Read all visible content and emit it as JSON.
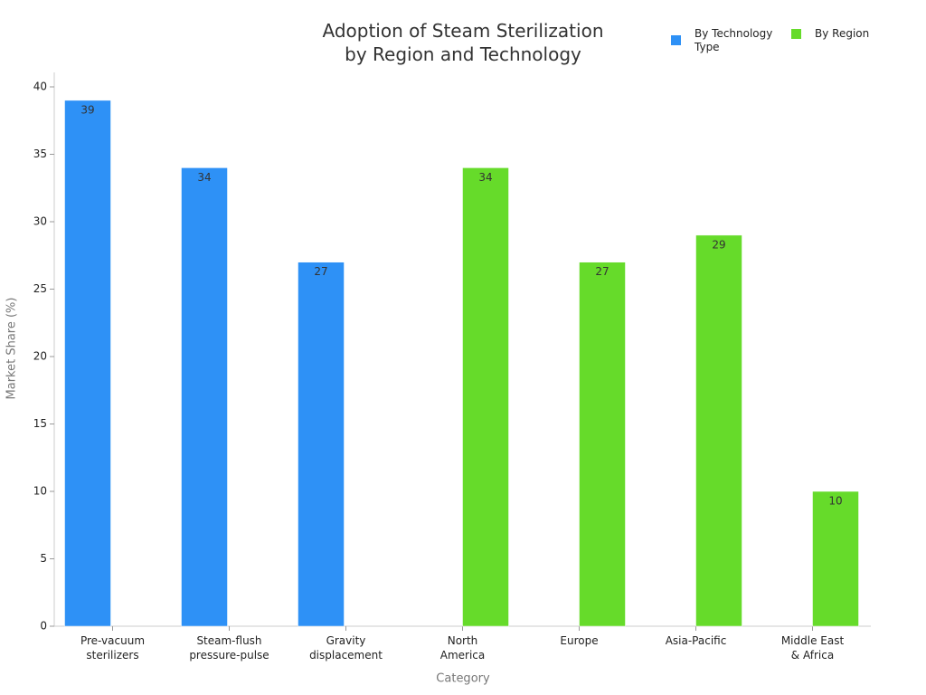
{
  "chart_data": {
    "type": "bar",
    "title": "Adoption of Steam Sterilization\nby Region and Technology",
    "x_label": "Category",
    "y_label": "Market Share (%)",
    "categories": [
      "Pre-vacuum\nsterilizers",
      "Steam-flush\npressure-pulse",
      "Gravity\ndisplacement",
      "North\nAmerica",
      "Europe",
      "Asia-Pacific",
      "Middle East\n& Africa"
    ],
    "series": [
      {
        "name": "By Technology Type",
        "color": "#2e91f6",
        "values": [
          39,
          34,
          27,
          null,
          null,
          null,
          null
        ]
      },
      {
        "name": "By Region",
        "color": "#66db2a",
        "values": [
          null,
          null,
          null,
          34,
          27,
          29,
          10
        ]
      }
    ],
    "ylim": [
      0,
      40
    ],
    "yticks": [
      0,
      5,
      10,
      15,
      20,
      25,
      30,
      35,
      40
    ],
    "grid": false,
    "legend": "top-right"
  }
}
